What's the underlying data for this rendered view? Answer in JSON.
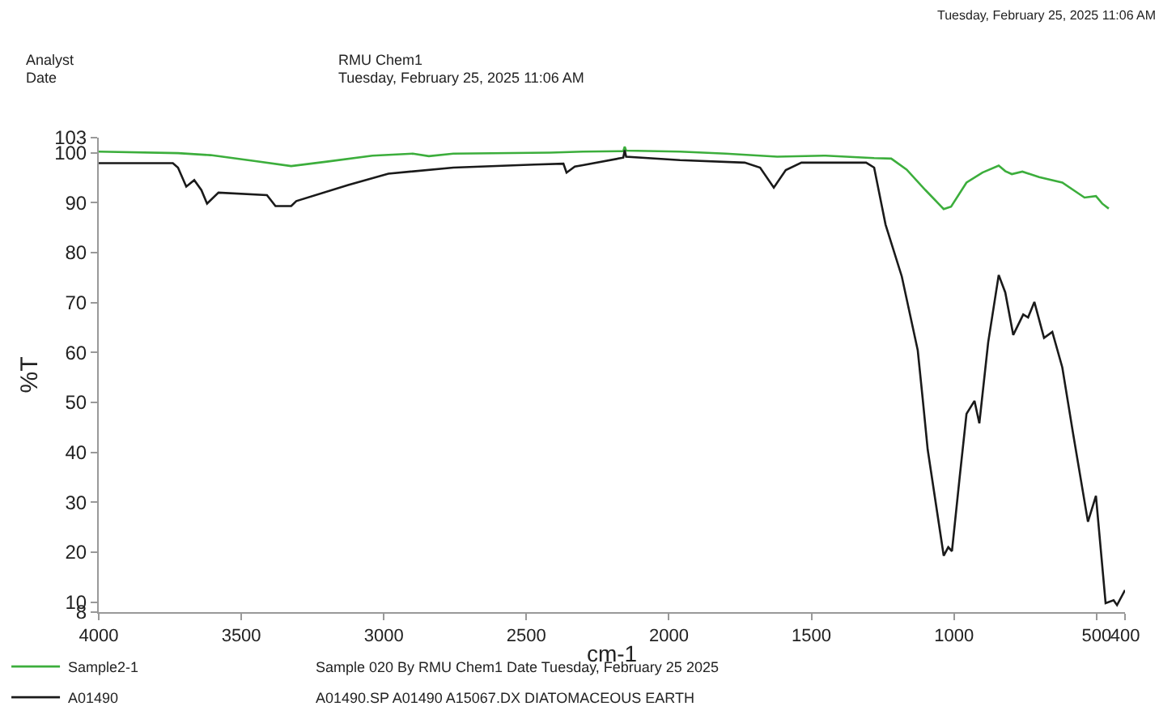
{
  "chart_data": {
    "type": "line",
    "xlabel": "cm-1",
    "ylabel": "%T",
    "xlim": [
      4000,
      400
    ],
    "xticks": [
      4000,
      3500,
      3000,
      2500,
      2000,
      1500,
      1000,
      500,
      400
    ],
    "ylim": [
      8,
      103
    ],
    "yticks": [
      8,
      10,
      20,
      30,
      40,
      50,
      60,
      70,
      80,
      90,
      100,
      103
    ],
    "legend": "bottom left",
    "line_style": "solid",
    "marker": "none",
    "annotations": [
      "Tuesday, February 25, 2025 11:06 AM",
      "Analyst",
      "RMU Chem1",
      "Date",
      "Tuesday, February 25, 2025 11:06 AM",
      "Sample 020 By RMU Chem1 Date Tuesday, February 25 2025",
      "A01490.SP A01490 A15067.DX DIATOMACEOUS EARTH"
    ],
    "series": [
      {
        "name": "Sample2-1",
        "color": "#3cae3c",
        "x": [
          4000,
          3722,
          3608,
          3450,
          3325,
          3200,
          3040,
          2898,
          2842,
          2756,
          2416,
          2302,
          2160,
          2155,
          2150,
          1961,
          1800,
          1620,
          1450,
          1280,
          1220,
          1166,
          1100,
          1036,
          1010,
          956,
          900,
          843,
          820,
          797,
          760,
          701,
          620,
          542,
          502,
          480,
          457
        ],
        "values": [
          100.2,
          99.9,
          99.5,
          98.3,
          97.3,
          98.2,
          99.4,
          99.8,
          99.3,
          99.8,
          100.0,
          100.2,
          100.3,
          101.2,
          100.4,
          100.2,
          99.8,
          99.2,
          99.4,
          98.9,
          98.8,
          96.6,
          92.5,
          88.7,
          89.2,
          94.0,
          96.0,
          97.4,
          96.3,
          95.7,
          96.2,
          95.1,
          94.0,
          91.0,
          91.3,
          89.8,
          88.8
        ]
      },
      {
        "name": "A01490",
        "color": "#1a1a1a",
        "x": [
          4000,
          3740,
          3722,
          3693,
          3665,
          3640,
          3620,
          3580,
          3410,
          3380,
          3325,
          3307,
          3125,
          2984,
          2756,
          2472,
          2370,
          2359,
          2330,
          2302,
          2160,
          2155,
          2150,
          1961,
          1734,
          1680,
          1632,
          1590,
          1535,
          1308,
          1280,
          1240,
          1183,
          1127,
          1110,
          1092,
          1036,
          1020,
          1007,
          980,
          956,
          928,
          911,
          880,
          843,
          820,
          792,
          757,
          740,
          718,
          684,
          655,
          620,
          582,
          530,
          502,
          468,
          440,
          428,
          400
        ],
        "values": [
          97.9,
          97.9,
          97.0,
          93.2,
          94.5,
          92.5,
          89.8,
          92.0,
          91.5,
          89.3,
          89.3,
          90.3,
          93.5,
          95.8,
          97.0,
          97.6,
          97.8,
          96.0,
          97.2,
          97.5,
          99.0,
          100.5,
          99.2,
          98.5,
          98.0,
          97.0,
          93.0,
          96.5,
          98.0,
          98.0,
          97.0,
          85.6,
          75.2,
          60.4,
          50.9,
          40.5,
          19.3,
          21.0,
          20.2,
          35.0,
          47.7,
          50.3,
          45.8,
          62.0,
          75.5,
          72.0,
          63.5,
          67.6,
          67.0,
          70.1,
          62.9,
          64.1,
          57.0,
          43.7,
          26.1,
          31.3,
          9.8,
          10.4,
          9.4,
          12.4
        ]
      }
    ]
  }
}
